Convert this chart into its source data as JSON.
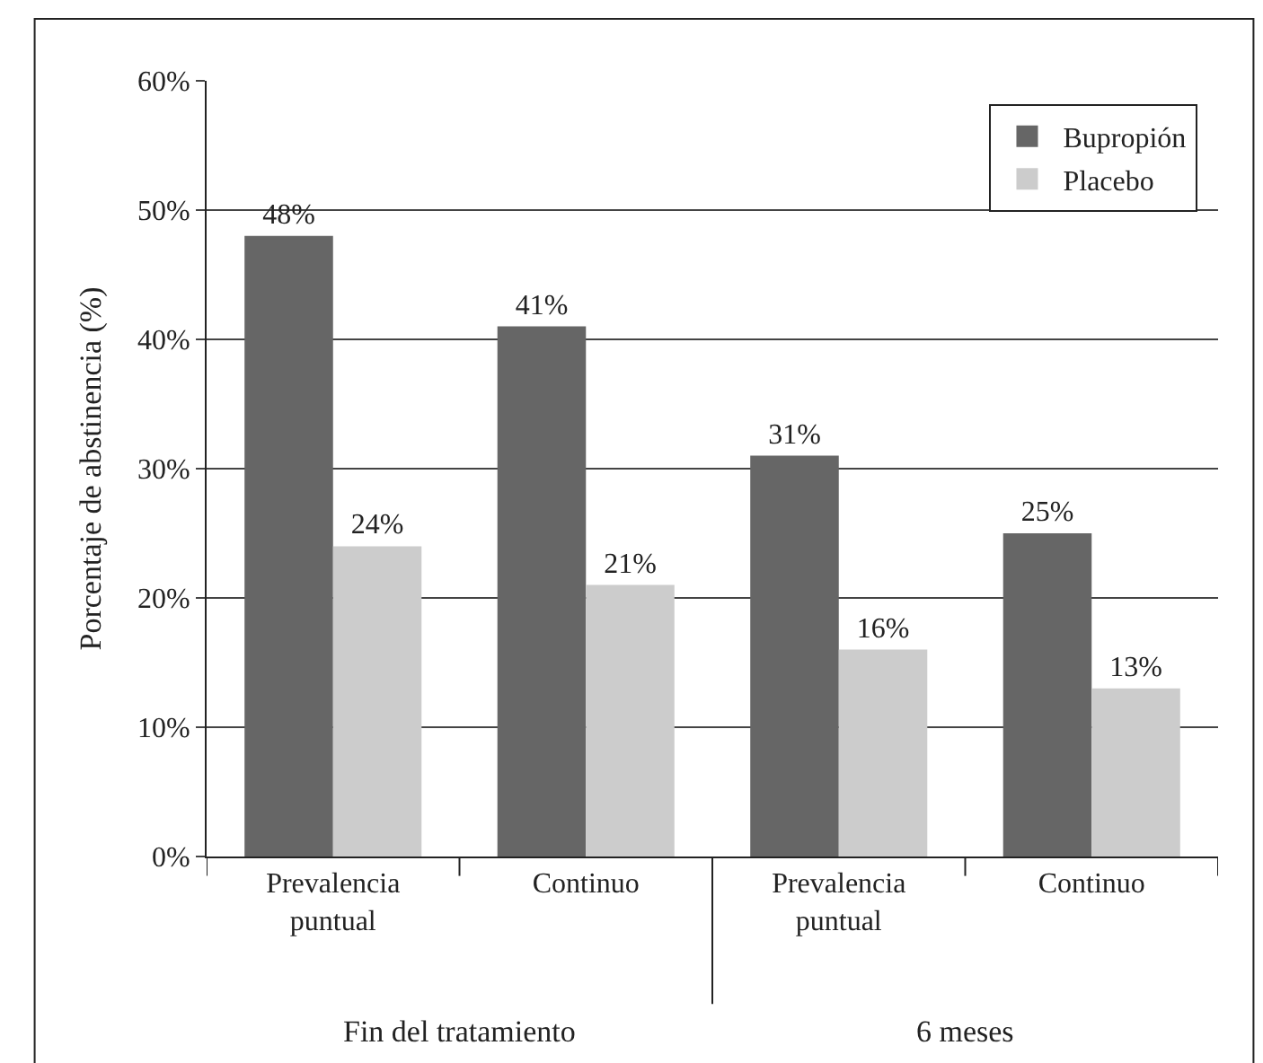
{
  "chart_data": {
    "type": "bar",
    "ylabel": "Porcentaje de abstinencia (%)",
    "categories": [
      "Prevalencia puntual",
      "Continuo",
      "Prevalencia puntual",
      "Continuo"
    ],
    "series": [
      {
        "name": "Bupropión",
        "color": "#666666",
        "values": [
          48,
          41,
          31,
          25
        ],
        "value_labels": [
          "48%",
          "41%",
          "31%",
          "25%"
        ]
      },
      {
        "name": "Placebo",
        "color": "#cccccc",
        "values": [
          24,
          21,
          16,
          13
        ],
        "value_labels": [
          "24%",
          "21%",
          "16%",
          "13%"
        ]
      }
    ],
    "ylim": [
      0,
      60
    ],
    "yticks": [
      {
        "value": 0,
        "label": "0%"
      },
      {
        "value": 10,
        "label": "10%"
      },
      {
        "value": 20,
        "label": "20%"
      },
      {
        "value": 30,
        "label": "30%"
      },
      {
        "value": 40,
        "label": "40%"
      },
      {
        "value": 50,
        "label": "50%"
      },
      {
        "value": 60,
        "label": "60%"
      }
    ],
    "annotations": [
      "Fin del tratamiento",
      "6 meses"
    ],
    "grid": "y",
    "legend": "top right"
  }
}
